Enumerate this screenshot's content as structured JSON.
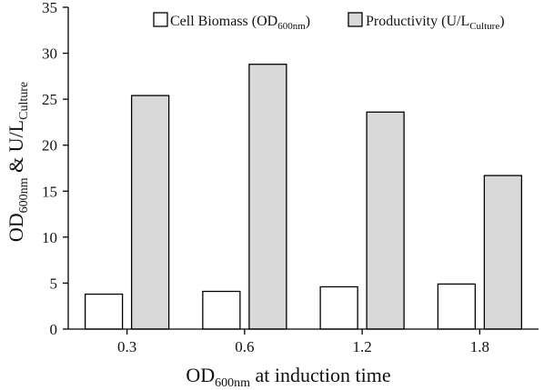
{
  "chart_data": {
    "type": "bar",
    "categories": [
      "0.3",
      "0.6",
      "1.2",
      "1.8"
    ],
    "series": [
      {
        "name": "Cell Biomass (OD600nm)",
        "values": [
          3.8,
          4.1,
          4.6,
          4.9
        ],
        "color": "#ffffff"
      },
      {
        "name": "Productivity (U/LCulture)",
        "values": [
          25.4,
          28.8,
          23.6,
          16.7
        ],
        "color": "#d9d9d9"
      }
    ],
    "legend_labels": [
      {
        "main": "Cell Biomass (OD",
        "sub": "600nm",
        "tail": ")"
      },
      {
        "main": "Productivity  (U/L",
        "sub": "Culture",
        "tail": ")"
      }
    ],
    "xlabel": {
      "main": "OD",
      "sub": "600nm",
      "tail": " at induction time"
    },
    "ylabel": {
      "part1": "OD",
      "sub1": "600nm",
      "part2": " & U/L",
      "sub2": "Culture"
    },
    "yticks": [
      0,
      5,
      10,
      15,
      20,
      25,
      30,
      35
    ],
    "ylim": [
      0,
      35
    ],
    "grid": false,
    "legend_position": "top-right",
    "bar_edge_color": "#000000"
  }
}
